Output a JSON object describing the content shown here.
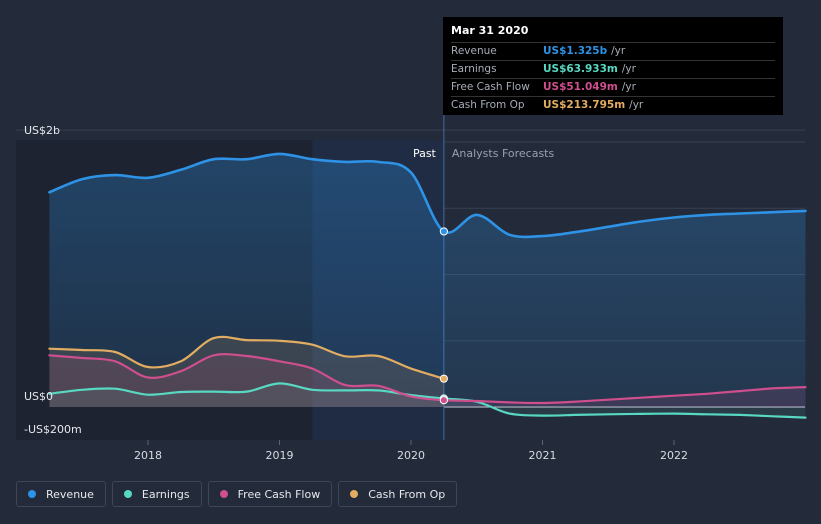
{
  "chart_data": {
    "type": "line",
    "x": [
      "2017.25",
      "2017.5",
      "2017.75",
      "2018",
      "2018.25",
      "2018.5",
      "2018.75",
      "2019",
      "2019.25",
      "2019.5",
      "2019.75",
      "2020",
      "2020.25",
      "2020.5",
      "2020.75",
      "2021",
      "2021.25",
      "2021.5",
      "2021.75",
      "2022",
      "2022.25",
      "2022.5",
      "2022.75",
      "2023"
    ],
    "xticks": [
      "2018",
      "2019",
      "2020",
      "2021",
      "2022"
    ],
    "ytick_labels": [
      "US$2b",
      "US$0",
      "-US$200m"
    ],
    "ylim": [
      -250,
      2050
    ],
    "past_end": 2020.25,
    "series": [
      {
        "name": "Revenue",
        "color": "#2e93e6",
        "values": [
          1620.0,
          1720.0,
          1750.0,
          1730.0,
          1790.0,
          1870.0,
          1870.0,
          1910.0,
          1870.0,
          1850.0,
          1850.0,
          1770.0,
          1325.0,
          1450.0,
          1300.0,
          1290.0,
          1320.0,
          1360.0,
          1400.0,
          1430.0,
          1450.0,
          1460.0,
          1470.0,
          1480.0
        ]
      },
      {
        "name": "Earnings",
        "color": "#58d8c2",
        "values": [
          100,
          130,
          138,
          93,
          113,
          116,
          116,
          178,
          130,
          125,
          125,
          90,
          63.933,
          40,
          -50,
          -65,
          -60,
          -55,
          -52,
          -50,
          -55,
          -60,
          -70,
          -80
        ]
      },
      {
        "name": "Free Cash Flow",
        "color": "#cf4f8e",
        "values": [
          390,
          370,
          345,
          223,
          270,
          390,
          385,
          345,
          290,
          165,
          160,
          80,
          51.049,
          45,
          35,
          30,
          40,
          55,
          70,
          85,
          100,
          120,
          140,
          150
        ]
      },
      {
        "name": "Cash From Op",
        "color": "#e2ac62",
        "values": [
          440,
          430,
          415,
          302,
          345,
          520,
          505,
          500,
          470,
          383,
          385,
          290,
          213.795,
          null,
          null,
          null,
          null,
          null,
          null,
          null,
          null,
          null,
          null,
          null
        ]
      }
    ],
    "labels": {
      "past": "Past",
      "forecast": "Analysts Forecasts"
    },
    "grid": true,
    "legend_position": "bottom"
  },
  "tooltip": {
    "date": "Mar 31 2020",
    "rows": [
      {
        "label": "Revenue",
        "value": "US$1.325b",
        "unit": "/yr",
        "color": "#2e93e6"
      },
      {
        "label": "Earnings",
        "value": "US$63.933m",
        "unit": "/yr",
        "color": "#58d8c2"
      },
      {
        "label": "Free Cash Flow",
        "value": "US$51.049m",
        "unit": "/yr",
        "color": "#cf4f8e"
      },
      {
        "label": "Cash From Op",
        "value": "US$213.795m",
        "unit": "/yr",
        "color": "#e2ac62"
      }
    ]
  },
  "legend": [
    {
      "label": "Revenue",
      "color": "#2e93e6"
    },
    {
      "label": "Earnings",
      "color": "#58d8c2"
    },
    {
      "label": "Free Cash Flow",
      "color": "#cf4f8e"
    },
    {
      "label": "Cash From Op",
      "color": "#e2ac62"
    }
  ]
}
